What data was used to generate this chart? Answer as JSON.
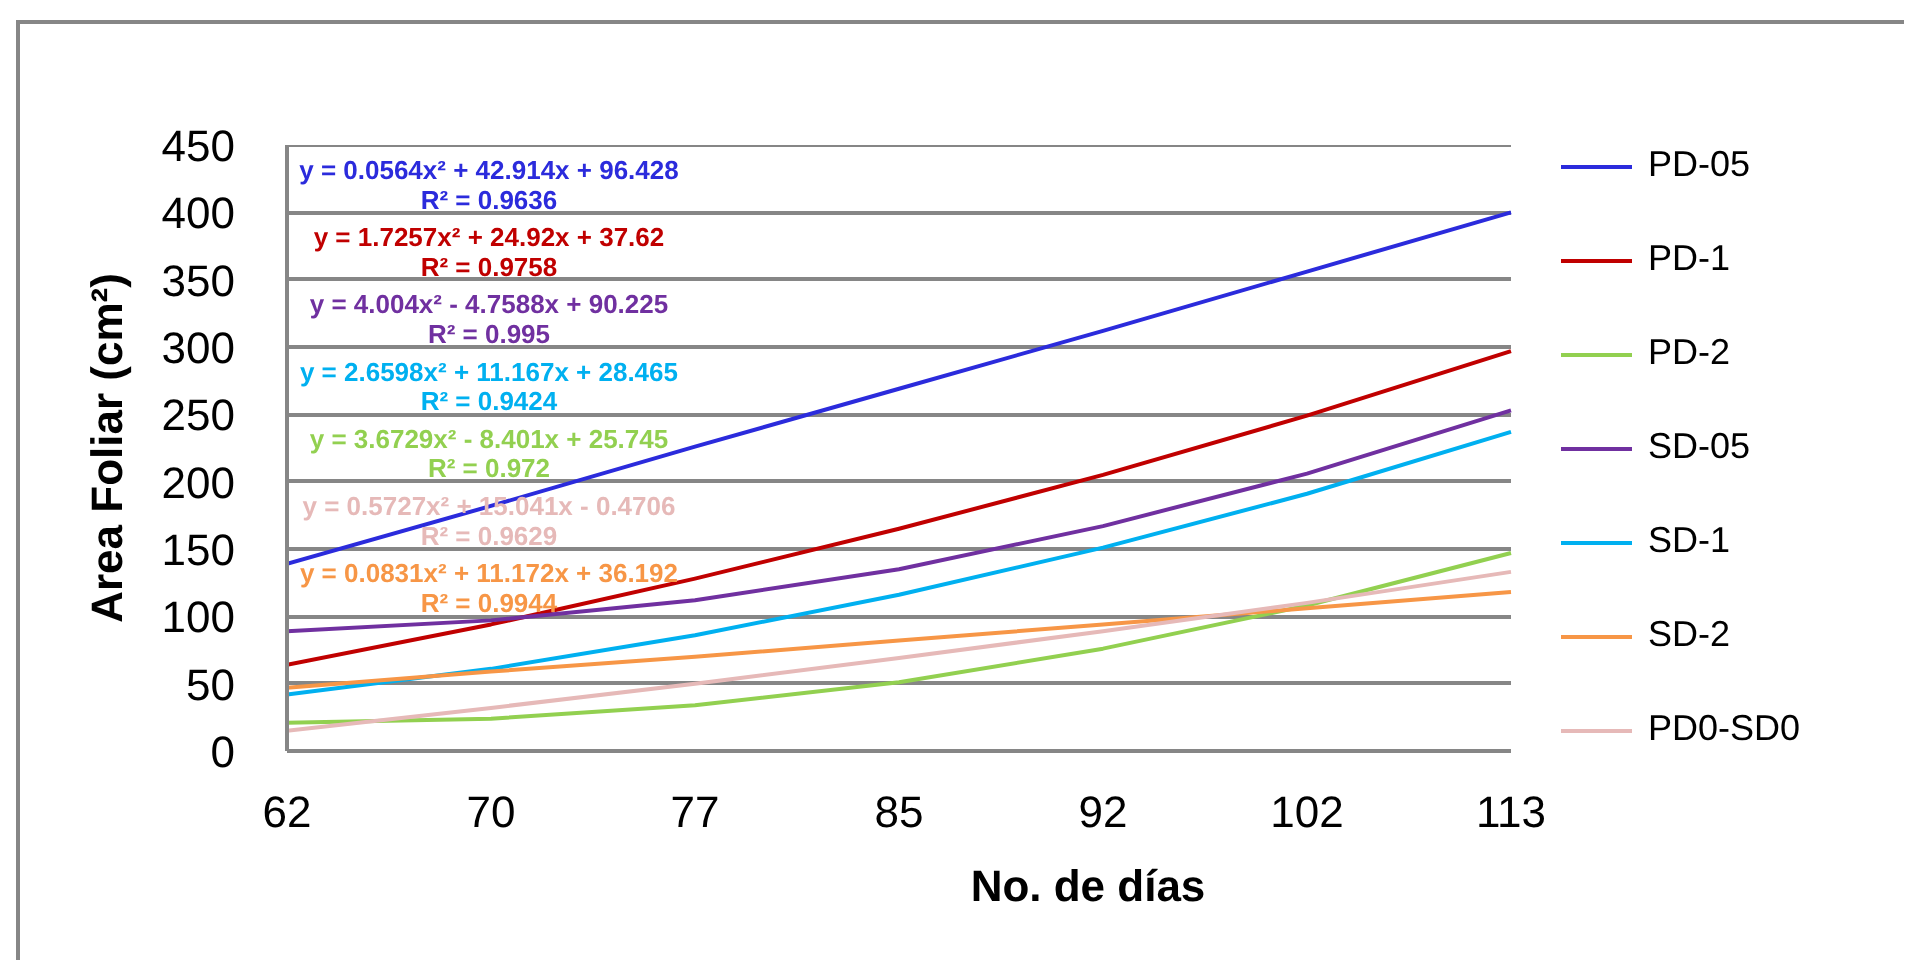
{
  "chart_data": {
    "type": "line",
    "xlabel": "No. de días",
    "ylabel": "Area Foliar (cm²)",
    "categories": [
      "62",
      "70",
      "77",
      "85",
      "92",
      "102",
      "113"
    ],
    "ylim": [
      0,
      450
    ],
    "yticks": [
      0,
      50,
      100,
      150,
      200,
      250,
      300,
      350,
      400,
      450
    ],
    "grid": "y",
    "legend": "right",
    "series": [
      {
        "name": "PD-05",
        "color": "#2b2bdc",
        "values": [
          139,
          182,
          226,
          269,
          312,
          356,
          400
        ]
      },
      {
        "name": "PD-1",
        "color": "#c00000",
        "values": [
          64,
          94,
          128,
          165,
          205,
          249,
          297
        ]
      },
      {
        "name": "PD-2",
        "color": "#92d050",
        "values": [
          21,
          24,
          34,
          51,
          76,
          108,
          147
        ]
      },
      {
        "name": "SD-05",
        "color": "#7030a0",
        "values": [
          89,
          97,
          112,
          135,
          167,
          206,
          253
        ]
      },
      {
        "name": "SD-1",
        "color": "#00b0f0",
        "values": [
          42,
          61,
          86,
          116,
          151,
          191,
          237
        ]
      },
      {
        "name": "SD-2",
        "color": "#f79646",
        "values": [
          47,
          59,
          70,
          82,
          94,
          106,
          118
        ]
      },
      {
        "name": "PD0-SD0",
        "color": "#e6b9b8",
        "values": [
          15,
          32,
          50,
          69,
          89,
          110,
          133
        ]
      }
    ],
    "annotations": [
      "y = 0.0564x² + 42.914x + 96.428",
      "R² = 0.9636",
      "y = 1.7257x² + 24.92x + 37.62",
      "R² = 0.9758",
      "y = 4.004x² - 4.7588x + 90.225",
      "R² = 0.995",
      "y = 2.6598x² + 11.167x + 28.465",
      "R² = 0.9424",
      "y = 3.6729x² - 8.401x + 25.745",
      "R² = 0.972",
      "y = 0.5727x² + 15.041x - 0.4706",
      "R² = 0.9629",
      "y = 0.0831x² + 11.172x + 36.192",
      "R² = 0.9944"
    ]
  }
}
